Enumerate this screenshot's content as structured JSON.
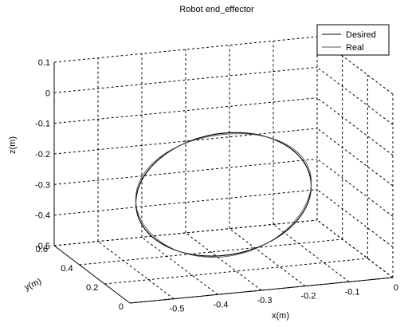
{
  "chart_data": {
    "type": "line",
    "title": "Robot end_effector",
    "xlabel": "x(m)",
    "ylabel": "y(m)",
    "zlabel": "z(m)",
    "xlim": [
      -0.6,
      0
    ],
    "ylim": [
      0,
      0.6
    ],
    "zlim": [
      -0.5,
      0.1
    ],
    "x_ticks": [
      "-0.5",
      "-0.4",
      "-0.3",
      "-0.2",
      "-0.1",
      "0"
    ],
    "y_ticks": [
      "0",
      "0.2",
      "0.4",
      "0.6"
    ],
    "z_ticks": [
      "0.1",
      "0",
      "-0.1",
      "-0.2",
      "-0.3",
      "-0.4",
      "-0.5"
    ],
    "grid": true,
    "legend_position": "top-right",
    "series": [
      {
        "name": "Desired",
        "shape": "circle",
        "center": [
          -0.3,
          0.3,
          -0.28
        ],
        "radius": 0.2,
        "color": "#000000",
        "style": "solid"
      },
      {
        "name": "Real",
        "shape": "circle",
        "center": [
          -0.3,
          0.3,
          -0.28
        ],
        "radius": 0.2,
        "color": "#555555",
        "style": "solid"
      }
    ]
  }
}
